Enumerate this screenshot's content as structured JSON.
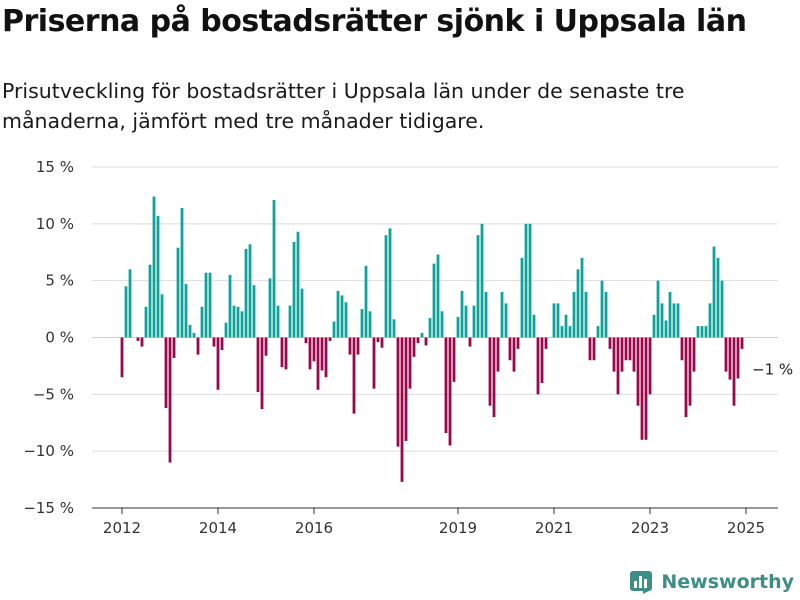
{
  "title": "Priserna på bostadsrätter sjönk i Uppsala län",
  "subtitle": "Prisutveckling för bostadsrätter i Uppsala län under de senaste tre månaderna, jämfört med tre månader tidigare.",
  "brand": {
    "name": "Newsworthy",
    "icon": "bar-chart-logo-icon"
  },
  "colors": {
    "positive": "#0fa39a",
    "negative": "#99064a",
    "grid": "#dddddd",
    "axis": "#333333",
    "brand": "#3d8f86"
  },
  "chart_data": {
    "type": "bar",
    "title": "",
    "xlabel": "",
    "ylabel": "",
    "ylim": [
      -15,
      15
    ],
    "y_ticks": [
      15,
      10,
      5,
      0,
      -5,
      -10,
      -15
    ],
    "y_tick_labels": [
      "15 %",
      "10 %",
      "5 %",
      "0 %",
      "−5 %",
      "−10 %",
      "−15 %"
    ],
    "x_ticks": [
      {
        "label": "2012",
        "x": 2012
      },
      {
        "label": "2014",
        "x": 2014
      },
      {
        "label": "2016",
        "x": 2016
      },
      {
        "label": "2019",
        "x": 2019
      },
      {
        "label": "2021",
        "x": 2021
      },
      {
        "label": "2023",
        "x": 2023
      },
      {
        "label": "2025",
        "x": 2025
      }
    ],
    "x_start": 2012,
    "months_per_bar": 1,
    "grid": true,
    "annotation": {
      "text": "−1 %",
      "index": 163
    },
    "values": [
      -3.5,
      4.5,
      6.0,
      0,
      -0.3,
      -0.8,
      2.7,
      6.4,
      12.4,
      10.7,
      3.8,
      -6.2,
      -11.0,
      -1.8,
      7.9,
      11.4,
      4.7,
      1.1,
      0.4,
      -1.5,
      2.7,
      5.7,
      5.7,
      -0.8,
      -4.6,
      -1.1,
      1.3,
      5.5,
      2.8,
      2.7,
      2.3,
      7.8,
      8.2,
      4.6,
      -4.8,
      -6.3,
      -1.6,
      5.2,
      12.1,
      2.8,
      -2.6,
      -2.8,
      2.8,
      8.4,
      9.3,
      4.3,
      -0.5,
      -2.8,
      -2.1,
      -4.6,
      -2.9,
      -3.5,
      -0.3,
      1.4,
      4.1,
      3.7,
      3.1,
      -1.5,
      -6.7,
      -1.5,
      2.5,
      6.3,
      2.3,
      -4.5,
      -0.4,
      -0.9,
      9.0,
      9.6,
      1.6,
      -9.6,
      -12.7,
      -9.1,
      -4.5,
      -1.7,
      -0.5,
      0.4,
      -0.7,
      1.7,
      6.5,
      7.3,
      2.3,
      -8.4,
      -9.5,
      -3.9,
      1.8,
      4.1,
      2.8,
      -0.8,
      2.8,
      9.0,
      10.0,
      4.0,
      -6.0,
      -7.0,
      -3.0,
      4.0,
      3.0,
      -2.0,
      -3.0,
      -1.0,
      7.0,
      10.0,
      10.0,
      2.0,
      -5.0,
      -4.0,
      -1.0,
      0,
      3.0,
      3.0,
      1.0,
      2.0,
      1.0,
      4.0,
      6.0,
      7.0,
      4.0,
      -2.0,
      -2.0,
      1.0,
      5.0,
      4.0,
      -1.0,
      -3.0,
      -5.0,
      -3.0,
      -2.0,
      -2.0,
      -3.0,
      -6.0,
      -9.0,
      -9.0,
      -5.0,
      2.0,
      5.0,
      3.0,
      1.5,
      4.0,
      3.0,
      3.0,
      -2.0,
      -7.0,
      -6.0,
      -3.0,
      1.0,
      1.0,
      1.0,
      3.0,
      8.0,
      7.0,
      5.0,
      -3.0,
      -3.7,
      -6.0,
      -3.6,
      -1.0
    ]
  }
}
